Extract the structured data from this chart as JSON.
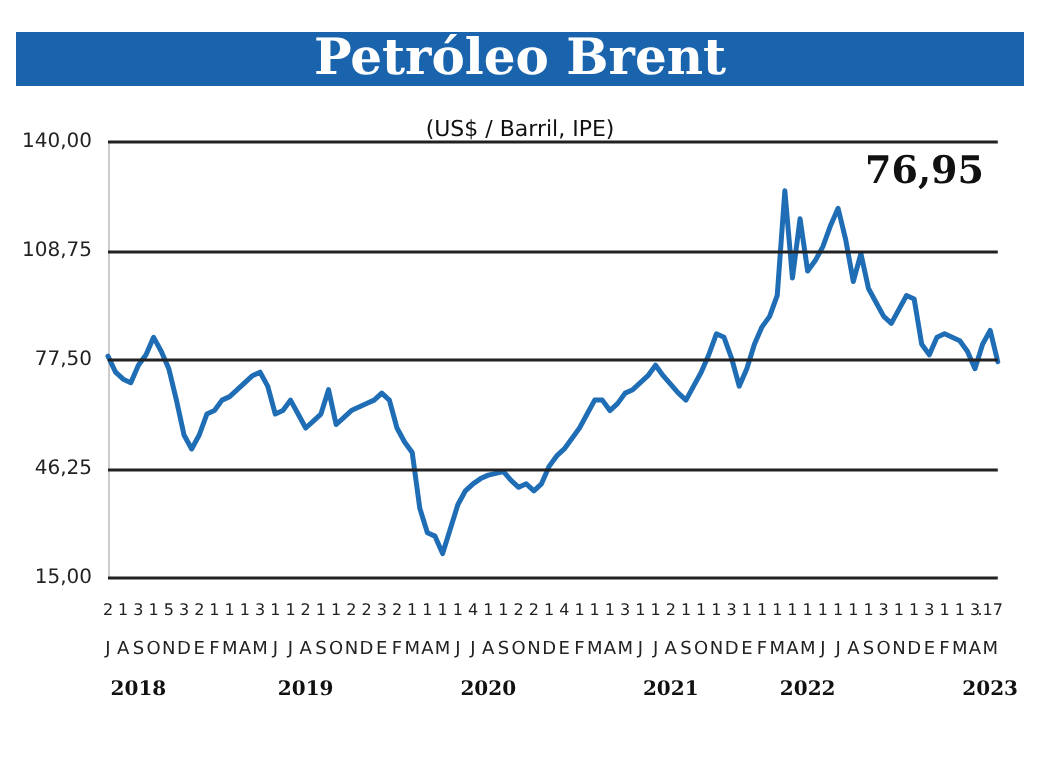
{
  "chart_data": {
    "type": "line",
    "title": "Petróleo Brent",
    "subtitle": "(US$ / Barril, IPE)",
    "annotations": [
      "76,95"
    ],
    "categories": [
      "2\nJ",
      null,
      "1\nA",
      null,
      "3\nS\n2018",
      null,
      "1\nO",
      null,
      "5\nN",
      null,
      "3\nD",
      null,
      "2\nE",
      null,
      "1\nF",
      null,
      "1\nM",
      null,
      "1\nA",
      null,
      "3\nM",
      null,
      "1\nJ",
      null,
      "1\nJ",
      null,
      "2\nA\n2019",
      null,
      "1\nS",
      null,
      "1\nO",
      null,
      "2\nN",
      null,
      "2\nD",
      null,
      "3\nE",
      null,
      "2\nF",
      null,
      "1\nM",
      null,
      "1\nA",
      null,
      "1\nM",
      null,
      "1\nJ",
      null,
      "4\nJ",
      null,
      "1\nA\n2020",
      null,
      "1\nS",
      null,
      "2\nO",
      null,
      "2\nN",
      null,
      "1\nD",
      null,
      "4\nE",
      null,
      "1\nF",
      null,
      "1\nM",
      null,
      "1\nA",
      null,
      "3\nM",
      null,
      "1\nJ",
      null,
      "1\nJ",
      null,
      "2\nA\n2021",
      null,
      "1\nS",
      null,
      "1\nO",
      null,
      "1\nN",
      null,
      "3\nD",
      null,
      "1\nE",
      null,
      "1\nF",
      null,
      "1\nM",
      null,
      "1\nA",
      null,
      "1\nM\n2022",
      null,
      "1\nJ",
      null,
      "1\nJ",
      null,
      "1\nA",
      null,
      "1\nS",
      null,
      "3\nO",
      null,
      "1\nN",
      null,
      "1\nD",
      null,
      "3\nE",
      null,
      "1\nF",
      null,
      "1\nM",
      null,
      "3\nA",
      null,
      ".17\nM\n2023",
      null
    ],
    "series": [
      {
        "color": "#1f6db5",
        "values": [
          78.6,
          74,
          72,
          71,
          76,
          79,
          84,
          80,
          75,
          66,
          56,
          52,
          56,
          62,
          63,
          66,
          67,
          69,
          71,
          73,
          74,
          70,
          62,
          63,
          66,
          62,
          58,
          60,
          62,
          69,
          59,
          61,
          63,
          64,
          65,
          66,
          68,
          66,
          58,
          54,
          51,
          35,
          28,
          27,
          22,
          29,
          36,
          40,
          42,
          43.5,
          44.5,
          45,
          45.5,
          43,
          41,
          42,
          40,
          42,
          47,
          50,
          52,
          55,
          58,
          62,
          66,
          66,
          63,
          65,
          68,
          69,
          71,
          73,
          76,
          73,
          70.5,
          68,
          66,
          70,
          74,
          79,
          85,
          84,
          78,
          70,
          75,
          82,
          87,
          90,
          96,
          126,
          101,
          118,
          103,
          106,
          110,
          116,
          121,
          112,
          100,
          108,
          98,
          94,
          90,
          88,
          92,
          96,
          95,
          82,
          79,
          84,
          85,
          84,
          83,
          80,
          75,
          82,
          86,
          77
        ]
      }
    ],
    "ylim": [
      15,
      140
    ],
    "yticks": [
      {
        "value": 15,
        "label": "15,00"
      },
      {
        "value": 46.25,
        "label": "46,25"
      },
      {
        "value": 77.5,
        "label": "77,50"
      },
      {
        "value": 108.75,
        "label": "108,75"
      },
      {
        "value": 140,
        "label": "140,00"
      }
    ],
    "grid": "y",
    "marker": "none",
    "line_style": "solid"
  }
}
